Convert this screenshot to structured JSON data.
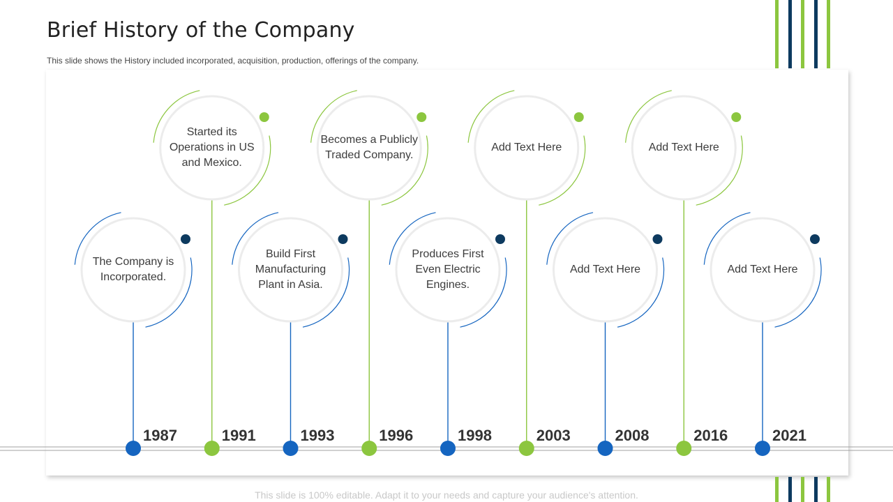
{
  "header": {
    "title": "Brief History of the Company",
    "subtitle": "This slide shows the History included incorporated, acquisition, production, offerings of the company."
  },
  "footer": {
    "note": "This slide is 100% editable. Adapt it to your needs and capture your audience's attention."
  },
  "colors": {
    "green": "#8cc63f",
    "navy": "#0d3a5f",
    "blue": "#1565c0",
    "ring": "#ececec"
  },
  "timeline": {
    "milestones": [
      {
        "year": "1987",
        "text": "The Company is Incorporated.",
        "accent": "blue"
      },
      {
        "year": "1991",
        "text": "Started its Operations in US and Mexico.",
        "accent": "green"
      },
      {
        "year": "1993",
        "text": "Build First Manufacturing Plant in Asia.",
        "accent": "blue"
      },
      {
        "year": "1996",
        "text": "Becomes a Publicly Traded Company.",
        "accent": "green"
      },
      {
        "year": "1998",
        "text": "Produces First Even Electric Engines.",
        "accent": "blue"
      },
      {
        "year": "2003",
        "text": "Add Text Here",
        "accent": "green"
      },
      {
        "year": "2008",
        "text": "Add Text Here",
        "accent": "blue"
      },
      {
        "year": "2016",
        "text": "Add Text Here",
        "accent": "green"
      },
      {
        "year": "2021",
        "text": "Add Text Here",
        "accent": "blue"
      }
    ]
  }
}
